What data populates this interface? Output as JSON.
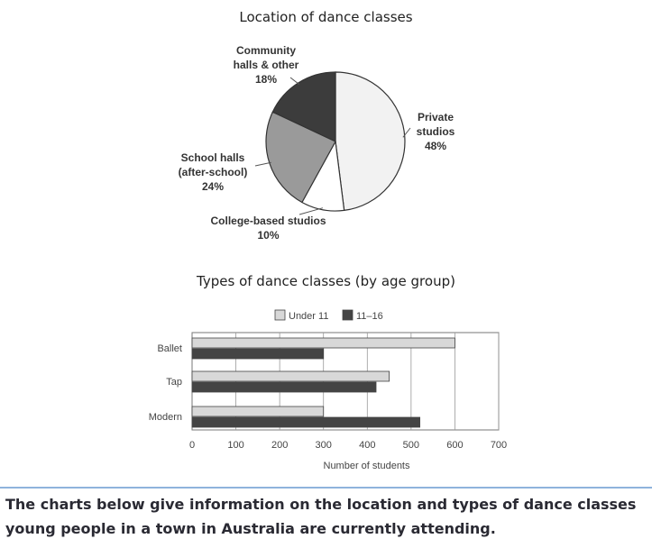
{
  "chart_data": [
    {
      "type": "pie",
      "title": "Location of dance classes",
      "slices": [
        {
          "label": "Private studios",
          "value": 48,
          "pct_label": "48%",
          "color": "#f2f2f2"
        },
        {
          "label": "College-based studios",
          "value": 10,
          "pct_label": "10%",
          "color": "#ffffff"
        },
        {
          "label": "School halls (after-school)",
          "value": 24,
          "pct_label": "24%",
          "color": "#9a9a9a"
        },
        {
          "label": "Community halls & other",
          "value": 18,
          "pct_label": "18%",
          "color": "#3c3c3c"
        }
      ],
      "labels": {
        "private": {
          "lines": [
            "Private",
            "studios"
          ],
          "pct": "48%"
        },
        "college": {
          "lines": [
            "College-based studios"
          ],
          "pct": "10%"
        },
        "school": {
          "lines": [
            "School halls",
            "(after-school)"
          ],
          "pct": "24%"
        },
        "community": {
          "lines": [
            "Community",
            "halls & other"
          ],
          "pct": "18%"
        }
      }
    },
    {
      "type": "bar",
      "orientation": "horizontal",
      "title": "Types of dance classes (by age group)",
      "categories": [
        "Ballet",
        "Tap",
        "Modern"
      ],
      "series": [
        {
          "name": "Under 11",
          "values": [
            600,
            450,
            300
          ],
          "color": "#d8d8d8"
        },
        {
          "name": "11–16",
          "values": [
            300,
            420,
            520
          ],
          "color": "#444444"
        }
      ],
      "xlabel": "Number of students",
      "ylabel": "",
      "xlim": [
        0,
        700
      ],
      "xticks": [
        0,
        100,
        200,
        300,
        400,
        500,
        600,
        700
      ],
      "legend": "top-center",
      "grid": true
    }
  ],
  "caption": "The charts below give information on the location and types of dance classes young people in a town in Australia are currently attending."
}
